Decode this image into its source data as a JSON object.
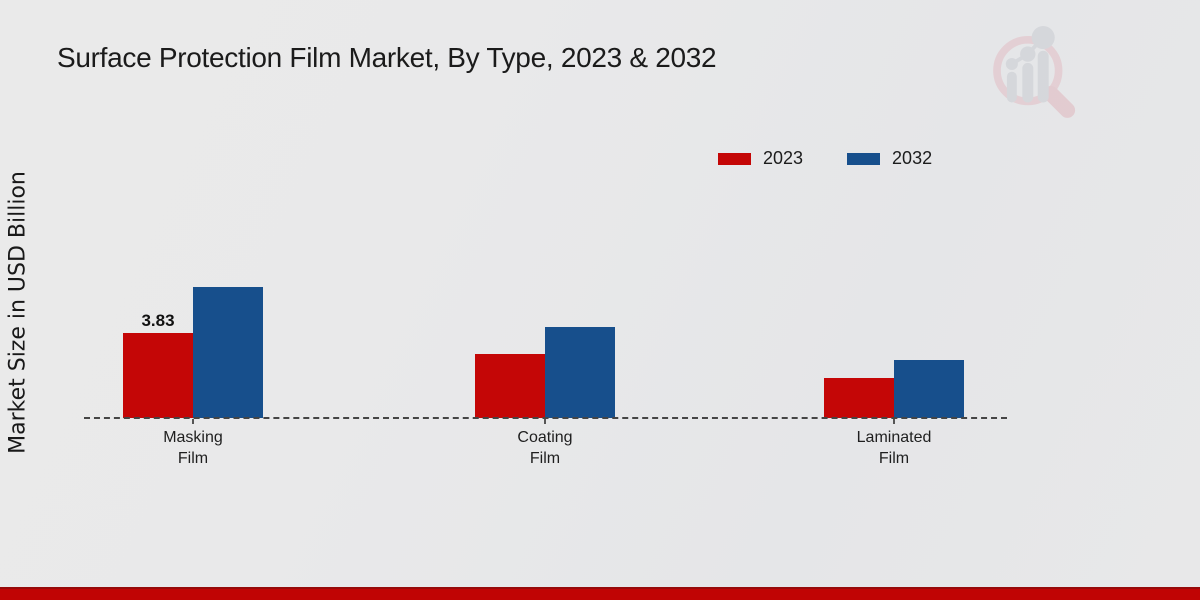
{
  "title": "Surface Protection Film Market, By Type, 2023 & 2032",
  "y_axis_label": "Market Size in USD Billion",
  "legend": {
    "items": [
      {
        "label": "2023",
        "color": "#c40606"
      },
      {
        "label": "2032",
        "color": "#174f8c"
      }
    ]
  },
  "chart_data": {
    "type": "bar",
    "title": "Surface Protection Film Market, By Type, 2023 & 2032",
    "xlabel": "",
    "ylabel": "Market Size in USD Billion",
    "categories": [
      "Masking Film",
      "Coating Film",
      "Laminated Film"
    ],
    "category_label_lines": [
      [
        "Masking",
        "Film"
      ],
      [
        "Coating",
        "Film"
      ],
      [
        "Laminated",
        "Film"
      ]
    ],
    "series": [
      {
        "name": "2023",
        "color": "#c40606",
        "values": [
          3.83,
          2.9,
          1.8
        ]
      },
      {
        "name": "2032",
        "color": "#174f8c",
        "values": [
          5.9,
          4.1,
          2.6
        ]
      }
    ],
    "bar_labels": [
      {
        "series": "2023",
        "category_index": 0,
        "text": "3.83"
      }
    ],
    "ylim": [
      0,
      8
    ],
    "grid": false,
    "axis_line_style": "dashed",
    "legend_position": "upper-right",
    "y_ticks_visible": false
  },
  "branding": {
    "logo_name": "magnifier-bar-chart-logo"
  },
  "footer": {
    "accent_color": "#c00404"
  }
}
